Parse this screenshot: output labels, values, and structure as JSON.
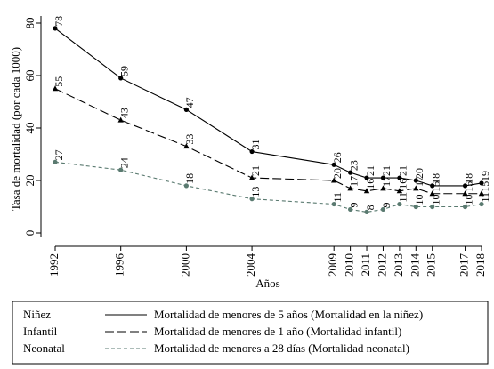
{
  "chart_data": {
    "type": "line",
    "x": [
      1992,
      1996,
      2000,
      2004,
      2009,
      2010,
      2011,
      2012,
      2013,
      2014,
      2015,
      2017,
      2018
    ],
    "xlabel": "Años",
    "ylabel": "Tasa de mortalidad (por cada 1000)",
    "xlim": [
      1992,
      2018
    ],
    "xticks": [
      1992,
      1996,
      2000,
      2004,
      2009,
      2010,
      2011,
      2012,
      2013,
      2014,
      2015,
      2017,
      2018
    ],
    "ylim": [
      0,
      80
    ],
    "yticks": [
      0,
      20,
      40,
      60,
      80
    ],
    "series": [
      {
        "name": "Niñez",
        "description": "Mortalidad de menores de 5 años (Mortalidad en la niñez)",
        "color": "#000000",
        "dash": "none",
        "marker": "circle",
        "values": [
          78,
          59,
          47,
          31,
          26,
          23,
          21,
          21,
          21,
          20,
          18,
          18,
          19
        ]
      },
      {
        "name": "Infantil",
        "description": "Mortalidad de menores de 1 año (Mortalidad infantil)",
        "color": "#000000",
        "dash": "10 4",
        "marker": "triangle",
        "values": [
          55,
          43,
          33,
          21,
          20,
          17,
          16,
          17,
          16,
          17,
          15,
          15,
          15
        ]
      },
      {
        "name": "Neonatal",
        "description": "Mortalidad de menores a 28 días (Mortalidad neonatal)",
        "color": "#5a7a70",
        "dash": "4 3",
        "marker": "circle",
        "values": [
          27,
          24,
          18,
          13,
          11,
          9,
          8,
          9,
          11,
          10,
          10,
          10,
          11
        ]
      }
    ]
  }
}
